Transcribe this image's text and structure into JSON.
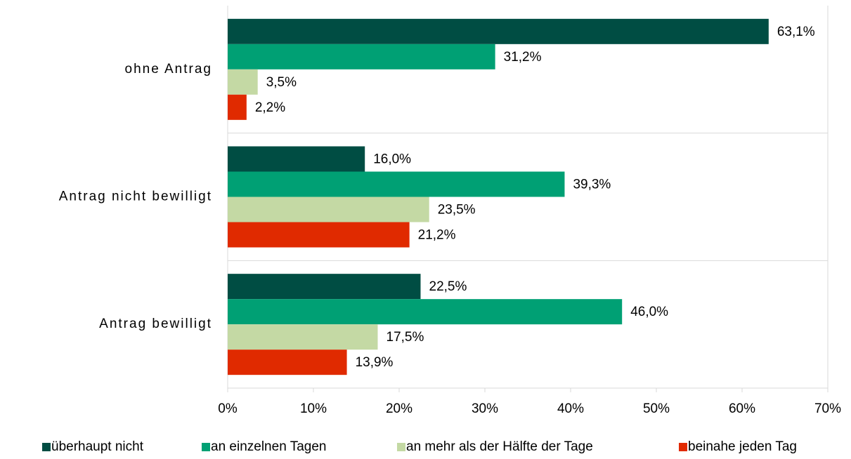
{
  "chart_data": {
    "type": "hbar",
    "categories": [
      "ohne Antrag",
      "Antrag nicht bewilligt",
      "Antrag bewilligt"
    ],
    "series": [
      {
        "name": "überhaupt nicht",
        "color": "#004d43",
        "values": [
          63.1,
          16.0,
          22.5
        ],
        "value_labels": [
          "63,1%",
          "16,0%",
          "22,5%"
        ]
      },
      {
        "name": "an einzelnen Tagen",
        "color": "#00a074",
        "values": [
          31.2,
          39.3,
          46.0
        ],
        "value_labels": [
          "31,2%",
          "39,3%",
          "46,0%"
        ]
      },
      {
        "name": "an mehr als der Hälfte der Tage",
        "color": "#c4d9a4",
        "values": [
          3.5,
          23.5,
          17.5
        ],
        "value_labels": [
          "3,5%",
          "23,5%",
          "17,5%"
        ]
      },
      {
        "name": "beinahe jeden Tag",
        "color": "#e02a00",
        "values": [
          2.2,
          21.2,
          13.9
        ],
        "value_labels": [
          "2,2%",
          "21,2%",
          "13,9%"
        ]
      }
    ],
    "xlim": [
      0,
      70
    ],
    "xticks": [
      {
        "value": 0,
        "label": "0%"
      },
      {
        "value": 10,
        "label": "10%"
      },
      {
        "value": 20,
        "label": "20%"
      },
      {
        "value": 30,
        "label": "30%"
      },
      {
        "value": 40,
        "label": "40%"
      },
      {
        "value": 50,
        "label": "50%"
      },
      {
        "value": 60,
        "label": "60%"
      },
      {
        "value": 70,
        "label": "70%"
      }
    ],
    "legend": "bottom"
  }
}
